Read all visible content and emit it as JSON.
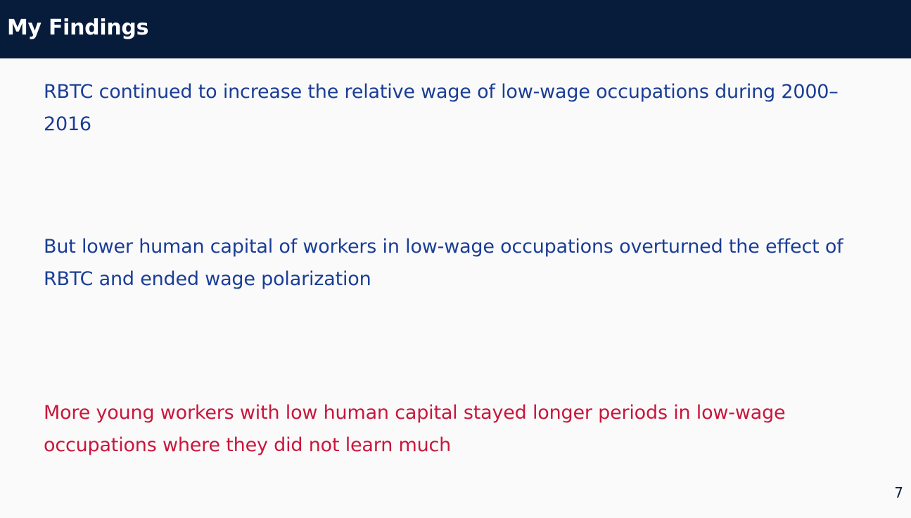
{
  "slide": {
    "title": "My Findings",
    "findings": [
      {
        "text": "RBTC continued to increase the relative wage of low-wage occupations during 2000–2016"
      },
      {
        "text": "But lower human capital of workers in low-wage occupations overturned the effect of RBTC and ended wage polarization"
      },
      {
        "text": "More young workers with low human capital stayed longer periods in low-wage occupations where they did not learn much"
      }
    ],
    "page_number": "7"
  },
  "colors": {
    "header_background": "#071b3b",
    "title_text": "#ffffff",
    "body_text_blue": "#1a3d96",
    "highlight_text_red": "#c8163c",
    "slide_background": "#fafafa"
  }
}
